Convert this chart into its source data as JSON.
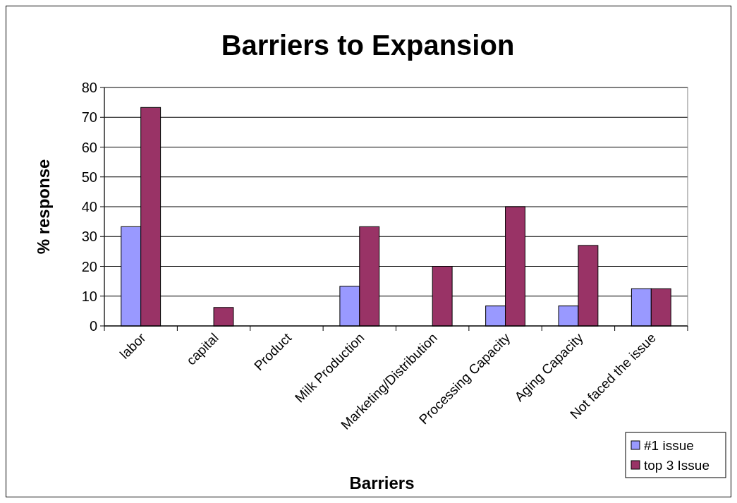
{
  "chart_data": {
    "type": "bar",
    "title": "Barriers to Expansion",
    "xlabel": "Barriers",
    "ylabel": "% response",
    "categories": [
      "labor",
      "capital",
      "Product",
      "Milk Production",
      "Marketing/Distribution",
      "Processing Capacity",
      "Aging Capacity",
      "Not faced the issue"
    ],
    "series": [
      {
        "name": "#1 issue",
        "color": "#9999ff",
        "values": [
          33.3,
          0,
          0,
          13.3,
          0,
          6.7,
          6.7,
          12.5
        ]
      },
      {
        "name": "top 3 Issue",
        "color": "#993366",
        "values": [
          73.3,
          6.2,
          0,
          33.3,
          20,
          40,
          27,
          12.5
        ]
      }
    ],
    "ylim": [
      0,
      80
    ],
    "yticks": [
      0,
      10,
      20,
      30,
      40,
      50,
      60,
      70,
      80
    ],
    "grid": "y",
    "legend": "bottom right"
  }
}
